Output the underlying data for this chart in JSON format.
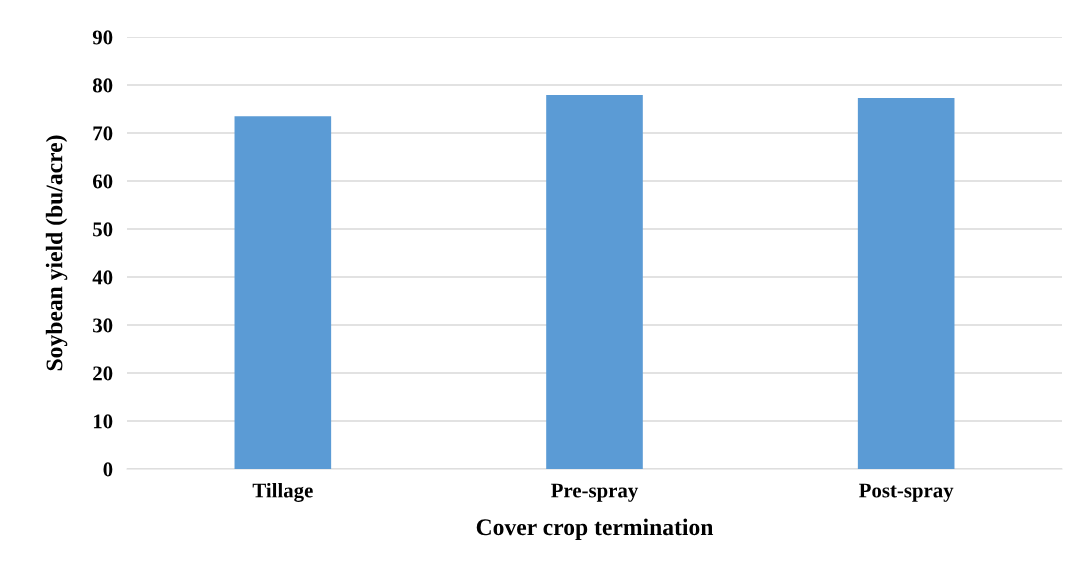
{
  "chart_data": {
    "type": "bar",
    "xlabel": "Cover crop termination",
    "ylabel": "Soybean yield (bu/acre)",
    "categories": [
      "Tillage",
      "Pre-spray",
      "Post-spray"
    ],
    "values": [
      73.5,
      77.9,
      77.3
    ],
    "color": "#5b9bd5",
    "ylim": [
      0,
      90
    ],
    "yticks": [
      0,
      10,
      20,
      30,
      40,
      50,
      60,
      70,
      80,
      90
    ],
    "grid": "y",
    "legend": false
  }
}
